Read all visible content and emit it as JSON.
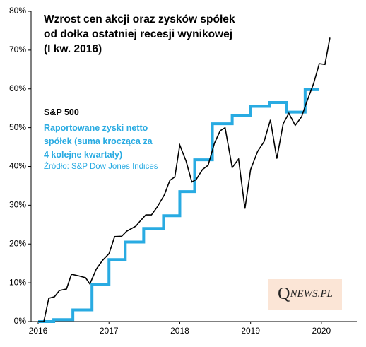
{
  "chart_data": {
    "type": "line",
    "title": "Wzrost cen akcji oraz zysków spółek\nod dołka ostatniej recesji wynikowej\n(I kw. 2016)",
    "source": "Źródło: S&P Dow Jones Indices",
    "logo": {
      "initial": "Q",
      "rest": "NEWS.PL"
    },
    "xlim": [
      2015.9,
      2020.5
    ],
    "xticks": [
      2016,
      2017,
      2018,
      2019,
      2020
    ],
    "ylim": [
      0,
      80
    ],
    "yticks": [
      {
        "value": 0,
        "label": "0%"
      },
      {
        "value": 10,
        "label": "10%"
      },
      {
        "value": 20,
        "label": "20%"
      },
      {
        "value": 30,
        "label": "30%"
      },
      {
        "value": 40,
        "label": "40%"
      },
      {
        "value": 50,
        "label": "50%"
      },
      {
        "value": 60,
        "label": "60%"
      },
      {
        "value": 70,
        "label": "70%"
      },
      {
        "value": 80,
        "label": "80%"
      }
    ],
    "series": [
      {
        "name": "S&P 500",
        "color": "#000000",
        "width": 1.6,
        "x": [
          2016.0,
          2016.08,
          2016.15,
          2016.23,
          2016.3,
          2016.4,
          2016.47,
          2016.57,
          2016.67,
          2016.73,
          2016.82,
          2016.91,
          2017.0,
          2017.08,
          2017.18,
          2017.25,
          2017.38,
          2017.43,
          2017.52,
          2017.6,
          2017.68,
          2017.78,
          2017.86,
          2017.93,
          2018.0,
          2018.09,
          2018.17,
          2018.23,
          2018.32,
          2018.4,
          2018.49,
          2018.57,
          2018.64,
          2018.74,
          2018.83,
          2018.92,
          2019.0,
          2019.1,
          2019.19,
          2019.28,
          2019.37,
          2019.46,
          2019.54,
          2019.63,
          2019.72,
          2019.79,
          2019.89,
          2019.97,
          2020.05,
          2020.12
        ],
        "values": [
          0,
          0,
          6,
          6.4,
          8,
          8.4,
          12.2,
          11.8,
          11.3,
          9.7,
          13.5,
          15.8,
          17.5,
          21.9,
          22,
          23.3,
          24.6,
          25.7,
          27.5,
          27.5,
          29.5,
          32.6,
          36.4,
          37.3,
          45.5,
          41.3,
          36,
          36.6,
          39.2,
          40.3,
          46,
          49.2,
          50,
          39.7,
          41.9,
          29.1,
          39.2,
          43.9,
          46.4,
          52,
          42,
          51,
          53.7,
          50.6,
          52.8,
          56.5,
          61.4,
          66.5,
          66.3,
          73.2
        ]
      },
      {
        "name": "Raportowane zyski netto\nspółek (suma krocząca za\n4 kolejne kwartały)",
        "color": "#29abe2",
        "width": 4,
        "step": "post",
        "x": [
          2016.0,
          2016.22,
          2016.49,
          2016.76,
          2017.0,
          2017.23,
          2017.49,
          2017.77,
          2018.0,
          2018.21,
          2018.46,
          2018.74,
          2019.0,
          2019.27,
          2019.51,
          2019.77,
          2019.97
        ],
        "values": [
          0,
          0.5,
          3,
          9.5,
          16,
          20.5,
          24,
          27.3,
          33.5,
          41.7,
          51,
          53.2,
          55.5,
          56.5,
          54,
          59.8,
          59.8
        ]
      }
    ]
  }
}
